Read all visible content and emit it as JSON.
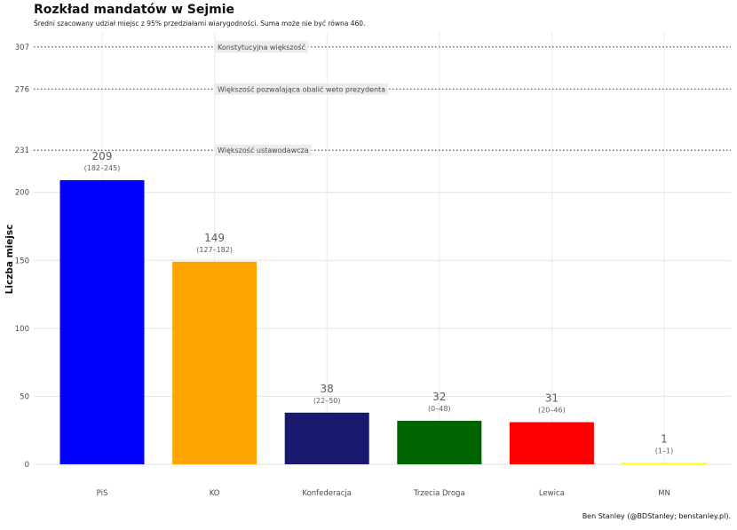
{
  "title": "Rozkład mandatów w Sejmie",
  "subtitle": "Średni szacowany udział miejsc z 95% przedziałami wiarygodności. Suma może nie być równa 460.",
  "caption": "Ben Stanley (@BDStanley; benstanley.pl).",
  "chart_data": {
    "type": "bar",
    "title": "Rozkład mandatów w Sejmie",
    "xlabel": "",
    "ylabel": "Liczba miejsc",
    "ylim": [
      0,
      318
    ],
    "y_ticks": [
      0,
      50,
      100,
      150,
      200
    ],
    "grid": true,
    "categories": [
      "PiS",
      "KO",
      "Konfederacja",
      "Trzecia Droga",
      "Lewica",
      "MN"
    ],
    "values": [
      209,
      149,
      38,
      32,
      31,
      1
    ],
    "value_labels": [
      "209",
      "149",
      "38",
      "32",
      "31",
      "1"
    ],
    "intervals": [
      "(182–245)",
      "(127–182)",
      "(22–50)",
      "(0–48)",
      "(20–46)",
      "(1–1)"
    ],
    "colors": [
      "#0000ff",
      "#ffa500",
      "#191970",
      "#006400",
      "#ff0000",
      "#ffff00"
    ],
    "reference_lines": [
      {
        "value": 307,
        "tick_label": "307",
        "label": "Konstytucyjna większość"
      },
      {
        "value": 276,
        "tick_label": "276",
        "label": "Większość pozwalająca obalić weto prezydenta"
      },
      {
        "value": 231,
        "tick_label": "231",
        "label": "Większość ustawodawcza"
      }
    ]
  }
}
